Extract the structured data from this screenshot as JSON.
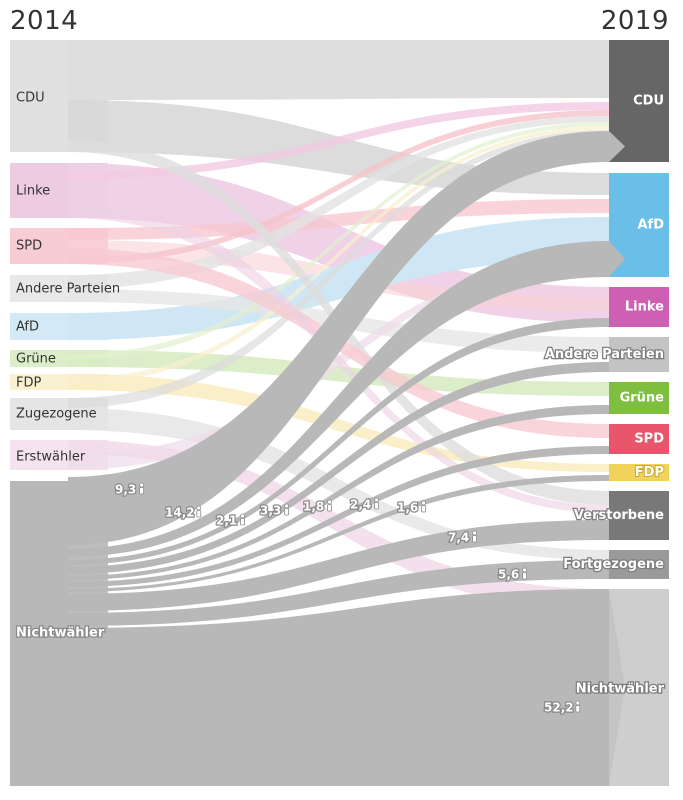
{
  "years": {
    "start": "2014",
    "end": "2019"
  },
  "colors": {
    "left_block": "#e3e3e3",
    "nonvoter_flow": "#b8b8b8",
    "nonvoter_right": "#cecece",
    "CDU": "#666666",
    "AfD": "#6abfe8",
    "Linke": "#cf5fb2",
    "Andere Parteien": "#c3c3c3",
    "Grüne": "#7fbf3f",
    "SPD": "#e8566b",
    "FDP": "#f1d35c",
    "Verstorbene": "#787878",
    "Fortgezogene": "#9a9a9a"
  },
  "chart_data": {
    "type": "sankey",
    "unit_icon": "person-icon",
    "left_nodes": [
      {
        "id": "CDU",
        "label": "CDU"
      },
      {
        "id": "Linke",
        "label": "Linke"
      },
      {
        "id": "SPD",
        "label": "SPD"
      },
      {
        "id": "Andere",
        "label": "Andere Parteien"
      },
      {
        "id": "AfD",
        "label": "AfD"
      },
      {
        "id": "Gruene",
        "label": "Grüne"
      },
      {
        "id": "FDP",
        "label": "FDP"
      },
      {
        "id": "Zugezogene",
        "label": "Zugezogene"
      },
      {
        "id": "Erstwaehler",
        "label": "Erstwähler"
      },
      {
        "id": "Nichtwaehler",
        "label": "Nichtwähler"
      }
    ],
    "right_nodes": [
      {
        "id": "CDU",
        "label": "CDU"
      },
      {
        "id": "AfD",
        "label": "AfD"
      },
      {
        "id": "Linke",
        "label": "Linke"
      },
      {
        "id": "Andere",
        "label": "Andere Parteien"
      },
      {
        "id": "Gruene",
        "label": "Grüne"
      },
      {
        "id": "SPD",
        "label": "SPD"
      },
      {
        "id": "FDP",
        "label": "FDP"
      },
      {
        "id": "Verstorbene",
        "label": "Verstorbene"
      },
      {
        "id": "Fortgezogene",
        "label": "Fortgezogene"
      },
      {
        "id": "Nichtwaehler",
        "label": "Nichtwähler"
      }
    ],
    "nichtwaehler_flows": [
      {
        "to": "CDU",
        "value": 9.3,
        "label": "9,3"
      },
      {
        "to": "AfD",
        "value": 14.2,
        "label": "14,2"
      },
      {
        "to": "Linke",
        "value": 2.1,
        "label": "2,1"
      },
      {
        "to": "Andere Parteien",
        "value": 3.3,
        "label": "3,3"
      },
      {
        "to": "Grüne",
        "value": 1.8,
        "label": "1,8"
      },
      {
        "to": "SPD",
        "value": 2.4,
        "label": "2,4"
      },
      {
        "to": "FDP",
        "value": 1.6,
        "label": "1,6"
      },
      {
        "to": "Verstorbene",
        "value": 7.4,
        "label": "7,4"
      },
      {
        "to": "Fortgezogene",
        "value": 5.6,
        "label": "5,6"
      },
      {
        "to": "Nichtwähler",
        "value": 52.2,
        "label": "52,2"
      }
    ]
  }
}
